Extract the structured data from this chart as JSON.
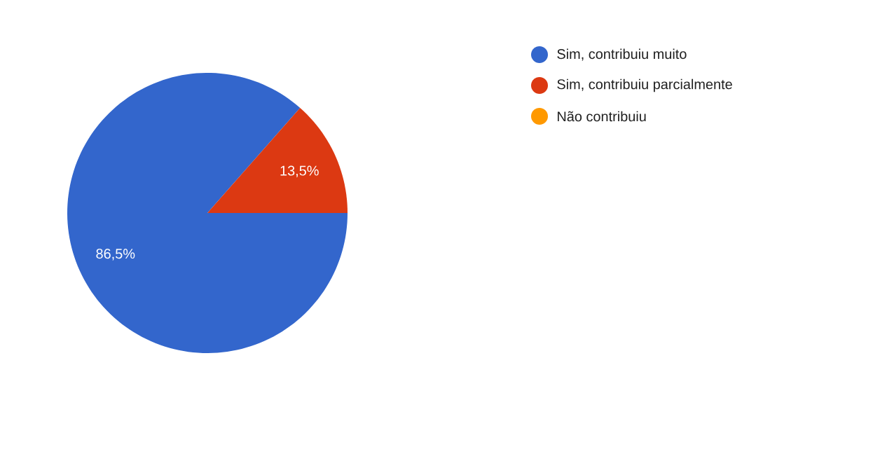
{
  "chart_data": {
    "type": "pie",
    "categories": [
      "Sim, contribuiu muito",
      "Sim, contribuiu parcialmente",
      "Não contribuiu"
    ],
    "values": [
      86.5,
      13.5,
      0
    ],
    "colors": [
      "#3366cc",
      "#dc3912",
      "#ff9900"
    ],
    "value_labels": [
      "86,5%",
      "13,5%",
      null
    ],
    "legend": "right"
  }
}
